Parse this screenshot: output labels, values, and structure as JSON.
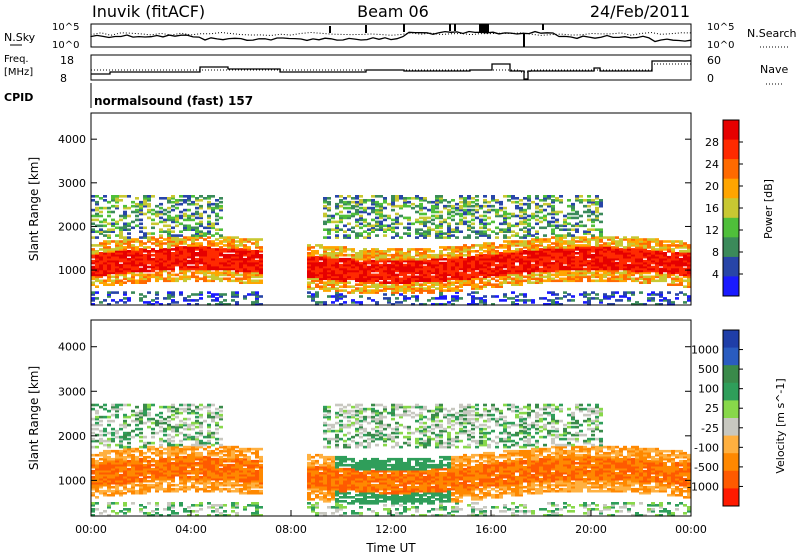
{
  "header": {
    "station": "Inuvik (fitACF)",
    "beam": "Beam 06",
    "date": "24/Feb/2011"
  },
  "noise_panel": {
    "left_label": "N.Sky",
    "right_label": "N.Search",
    "left_ticks": [
      "10^5",
      "10^0"
    ],
    "right_ticks": [
      "10^5",
      "10^0"
    ]
  },
  "freq_panel": {
    "left_label_line1": "Freq.",
    "left_label_line2": "[MHz]",
    "right_label": "Nave",
    "left_ticks": [
      "18",
      "8"
    ],
    "right_ticks": [
      "60",
      "0"
    ]
  },
  "cpid": {
    "label": "CPID",
    "text": "normalsound (fast) 157"
  },
  "colors": {
    "power_scale": [
      "#1a1aff",
      "#2845a8",
      "#3b8a5a",
      "#4fbf3a",
      "#c8c832",
      "#ffa500",
      "#ff6a00",
      "#ff2a00",
      "#e60000"
    ],
    "velocity_scale": [
      "#1f3ea8",
      "#2a5cc0",
      "#3a8a4a",
      "#2f9e5a",
      "#88d84a",
      "#c8c8c0",
      "#ffb040",
      "#ff8800",
      "#ff5a00",
      "#ff1a00"
    ]
  },
  "chart_data": [
    {
      "type": "heatmap",
      "title": "",
      "xlabel": "",
      "ylabel": "Slant Range [km]",
      "x_ticks": [
        "00:00",
        "04:00",
        "08:00",
        "12:00",
        "16:00",
        "20:00",
        "00:00"
      ],
      "y_ticks": [
        "1000",
        "2000",
        "3000",
        "4000"
      ],
      "ylim": [
        200,
        4600
      ],
      "colorbar": {
        "label": "Power [dB]",
        "ticks": [
          "4",
          "8",
          "12",
          "16",
          "20",
          "24",
          "28"
        ]
      }
    },
    {
      "type": "heatmap",
      "title": "",
      "xlabel": "Time UT",
      "ylabel": "Slant Range [km]",
      "x_ticks": [
        "00:00",
        "04:00",
        "08:00",
        "12:00",
        "16:00",
        "20:00",
        "00:00"
      ],
      "y_ticks": [
        "1000",
        "2000",
        "3000",
        "4000"
      ],
      "ylim": [
        200,
        4600
      ],
      "colorbar": {
        "label": "Velocity [m s^-1]",
        "ticks": [
          "1000",
          "500",
          "100",
          "25",
          "-25",
          "-100",
          "-500",
          "-1000"
        ]
      }
    }
  ]
}
